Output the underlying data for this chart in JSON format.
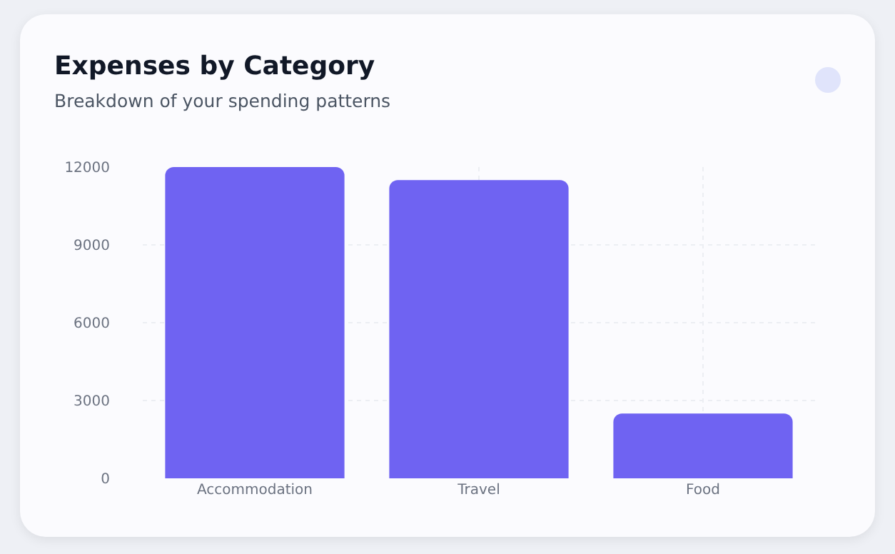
{
  "chart_data": {
    "type": "bar",
    "title": "Expenses by Category",
    "subtitle": "Breakdown of your spending patterns",
    "categories": [
      "Accommodation",
      "Travel",
      "Food"
    ],
    "values": [
      12000,
      11500,
      2500
    ],
    "color": "#6f63f2",
    "ylim": [
      0,
      12000
    ],
    "yticks": [
      0,
      3000,
      6000,
      9000,
      12000
    ],
    "grid": true
  }
}
